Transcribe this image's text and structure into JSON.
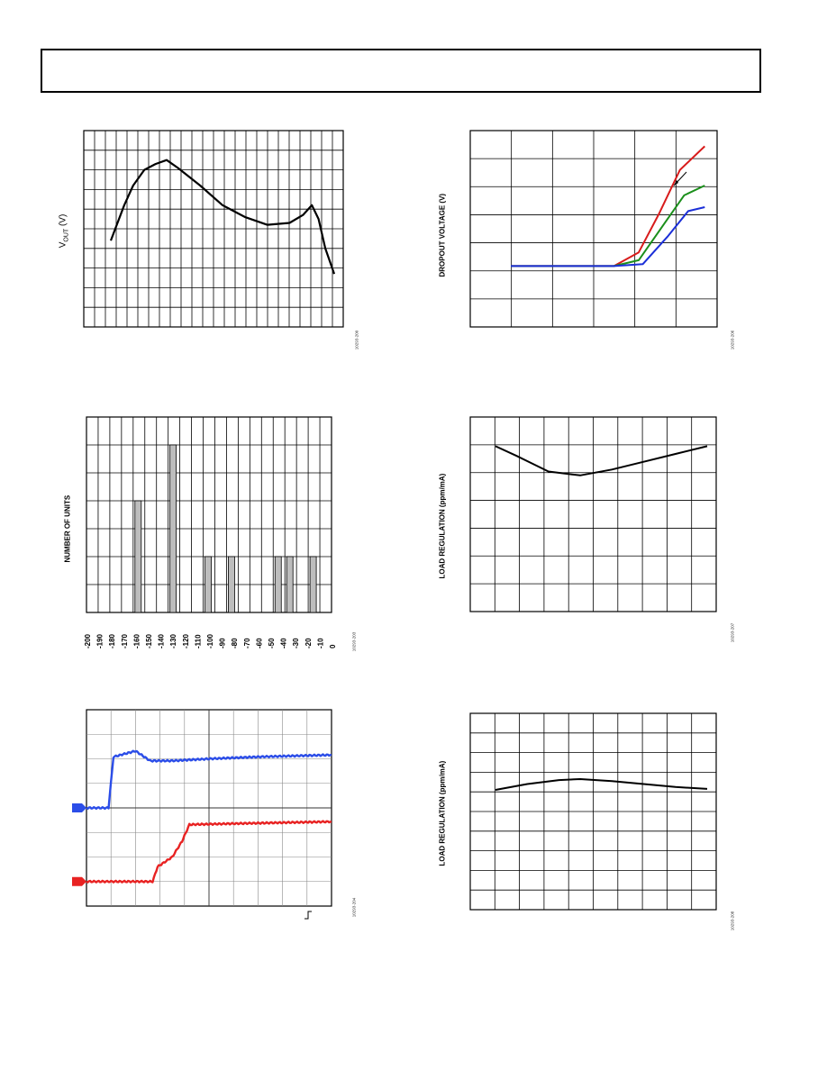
{
  "chart_data": [
    {
      "type": "line",
      "ylabel": "V",
      "ylabel_subscript": "OUT",
      "ylabel_unit": " (V)",
      "figure_id": "10293-200",
      "series": [
        {
          "color": "#000000",
          "points": [
            [
              0.0,
              0.44
            ],
            [
              0.06,
              0.62
            ],
            [
              0.1,
              0.72
            ],
            [
              0.15,
              0.8
            ],
            [
              0.2,
              0.83
            ],
            [
              0.25,
              0.85
            ],
            [
              0.3,
              0.81
            ],
            [
              0.4,
              0.72
            ],
            [
              0.5,
              0.62
            ],
            [
              0.6,
              0.56
            ],
            [
              0.7,
              0.52
            ],
            [
              0.8,
              0.53
            ],
            [
              0.86,
              0.57
            ],
            [
              0.9,
              0.62
            ],
            [
              0.93,
              0.55
            ],
            [
              0.96,
              0.4
            ],
            [
              1.0,
              0.27
            ]
          ]
        }
      ]
    },
    {
      "type": "line",
      "ylabel": "DROPOUT VOLTAGE (V)",
      "figure_id": "10293-206",
      "series": [
        {
          "color": "#d81b1b",
          "points": [
            [
              0.0,
              0.31
            ],
            [
              0.5,
              0.31
            ],
            [
              0.62,
              0.38
            ],
            [
              0.72,
              0.58
            ],
            [
              0.82,
              0.8
            ],
            [
              0.94,
              0.92
            ]
          ]
        },
        {
          "color": "#1b8f1b",
          "points": [
            [
              0.0,
              0.31
            ],
            [
              0.5,
              0.31
            ],
            [
              0.62,
              0.34
            ],
            [
              0.74,
              0.52
            ],
            [
              0.84,
              0.67
            ],
            [
              0.94,
              0.72
            ]
          ]
        },
        {
          "color": "#1b2fd8",
          "points": [
            [
              0.0,
              0.31
            ],
            [
              0.5,
              0.31
            ],
            [
              0.64,
              0.32
            ],
            [
              0.76,
              0.46
            ],
            [
              0.86,
              0.59
            ],
            [
              0.94,
              0.61
            ]
          ]
        }
      ]
    },
    {
      "type": "bar",
      "ylabel": "NUMBER OF UNITS",
      "figure_id": "10293-203",
      "categories": [
        "-200",
        "-190",
        "-180",
        "-170",
        "-160",
        "-150",
        "-140",
        "-130",
        "-120",
        "-110",
        "-100",
        "-90",
        "-80",
        "-70",
        "-60",
        "-50",
        "-40",
        "-30",
        "-20",
        "-10",
        "0"
      ],
      "bar_positions": [
        -160,
        -130,
        -100,
        -80,
        -40,
        -30,
        -10
      ],
      "bar_heights": [
        4,
        6,
        2,
        2,
        2,
        2,
        2
      ],
      "ylim": [
        0,
        7
      ]
    },
    {
      "type": "line",
      "ylabel": "LOAD REGULATION (ppm/mA)",
      "figure_id": "10293-207",
      "series": [
        {
          "color": "#000000",
          "points": [
            [
              0.0,
              0.85
            ],
            [
              0.1,
              0.8
            ],
            [
              0.25,
              0.72
            ],
            [
              0.4,
              0.7
            ],
            [
              0.55,
              0.73
            ],
            [
              0.7,
              0.77
            ],
            [
              0.85,
              0.81
            ],
            [
              1.0,
              0.85
            ]
          ]
        }
      ]
    },
    {
      "type": "line",
      "figure_id": "10293-204",
      "series": [
        {
          "color": "#2b4de8",
          "points": [
            [
              0.0,
              0.5
            ],
            [
              0.09,
              0.5
            ],
            [
              0.11,
              0.76
            ],
            [
              0.2,
              0.79
            ],
            [
              0.26,
              0.74
            ],
            [
              0.35,
              0.74
            ],
            [
              0.5,
              0.75
            ],
            [
              0.7,
              0.76
            ],
            [
              1.0,
              0.77
            ]
          ]
        },
        {
          "color": "#e82222",
          "points": [
            [
              0.0,
              0.125
            ],
            [
              0.27,
              0.125
            ],
            [
              0.29,
              0.2
            ],
            [
              0.35,
              0.25
            ],
            [
              0.39,
              0.33
            ],
            [
              0.42,
              0.415
            ],
            [
              0.6,
              0.42
            ],
            [
              1.0,
              0.43
            ]
          ]
        }
      ],
      "markers": [
        {
          "color": "#2b4de8",
          "level": 0.5
        },
        {
          "color": "#e82222",
          "level": 0.125
        }
      ]
    },
    {
      "type": "line",
      "ylabel": "LOAD REGULATION (ppm/mA)",
      "figure_id": "10293-208",
      "series": [
        {
          "color": "#000000",
          "points": [
            [
              0.0,
              0.61
            ],
            [
              0.15,
              0.64
            ],
            [
              0.3,
              0.66
            ],
            [
              0.4,
              0.665
            ],
            [
              0.55,
              0.655
            ],
            [
              0.7,
              0.64
            ],
            [
              0.85,
              0.625
            ],
            [
              1.0,
              0.615
            ]
          ]
        }
      ]
    }
  ]
}
